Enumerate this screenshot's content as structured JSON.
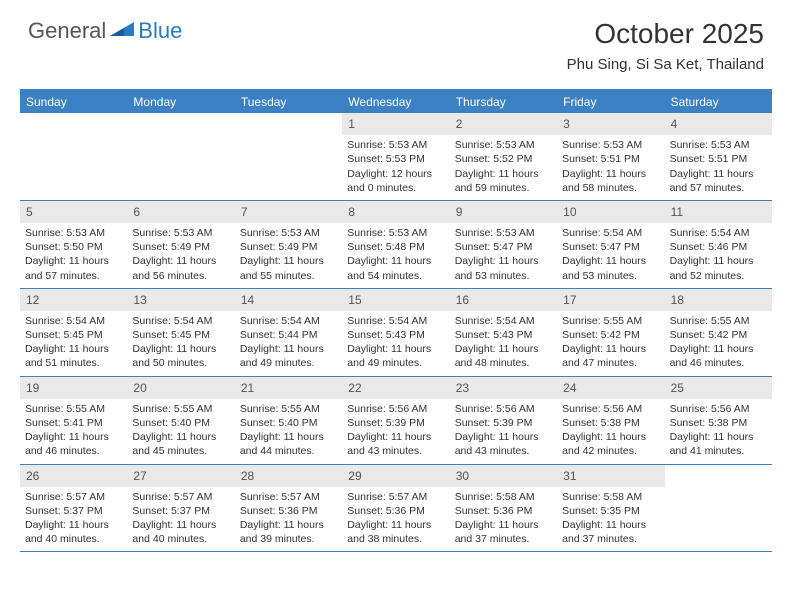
{
  "logo": {
    "text1": "General",
    "text2": "Blue"
  },
  "title": "October 2025",
  "location": "Phu Sing, Si Sa Ket, Thailand",
  "colors": {
    "header_blue": "#3b81c3",
    "daynum_bg": "#e9e9e9",
    "text": "#333333",
    "logo_blue": "#2b7bbf"
  },
  "daysOfWeek": [
    "Sunday",
    "Monday",
    "Tuesday",
    "Wednesday",
    "Thursday",
    "Friday",
    "Saturday"
  ],
  "weeks": [
    [
      {
        "n": "",
        "sr": "",
        "ss": "",
        "dl": ""
      },
      {
        "n": "",
        "sr": "",
        "ss": "",
        "dl": ""
      },
      {
        "n": "",
        "sr": "",
        "ss": "",
        "dl": ""
      },
      {
        "n": "1",
        "sr": "5:53 AM",
        "ss": "5:53 PM",
        "dl": "12 hours and 0 minutes."
      },
      {
        "n": "2",
        "sr": "5:53 AM",
        "ss": "5:52 PM",
        "dl": "11 hours and 59 minutes."
      },
      {
        "n": "3",
        "sr": "5:53 AM",
        "ss": "5:51 PM",
        "dl": "11 hours and 58 minutes."
      },
      {
        "n": "4",
        "sr": "5:53 AM",
        "ss": "5:51 PM",
        "dl": "11 hours and 57 minutes."
      }
    ],
    [
      {
        "n": "5",
        "sr": "5:53 AM",
        "ss": "5:50 PM",
        "dl": "11 hours and 57 minutes."
      },
      {
        "n": "6",
        "sr": "5:53 AM",
        "ss": "5:49 PM",
        "dl": "11 hours and 56 minutes."
      },
      {
        "n": "7",
        "sr": "5:53 AM",
        "ss": "5:49 PM",
        "dl": "11 hours and 55 minutes."
      },
      {
        "n": "8",
        "sr": "5:53 AM",
        "ss": "5:48 PM",
        "dl": "11 hours and 54 minutes."
      },
      {
        "n": "9",
        "sr": "5:53 AM",
        "ss": "5:47 PM",
        "dl": "11 hours and 53 minutes."
      },
      {
        "n": "10",
        "sr": "5:54 AM",
        "ss": "5:47 PM",
        "dl": "11 hours and 53 minutes."
      },
      {
        "n": "11",
        "sr": "5:54 AM",
        "ss": "5:46 PM",
        "dl": "11 hours and 52 minutes."
      }
    ],
    [
      {
        "n": "12",
        "sr": "5:54 AM",
        "ss": "5:45 PM",
        "dl": "11 hours and 51 minutes."
      },
      {
        "n": "13",
        "sr": "5:54 AM",
        "ss": "5:45 PM",
        "dl": "11 hours and 50 minutes."
      },
      {
        "n": "14",
        "sr": "5:54 AM",
        "ss": "5:44 PM",
        "dl": "11 hours and 49 minutes."
      },
      {
        "n": "15",
        "sr": "5:54 AM",
        "ss": "5:43 PM",
        "dl": "11 hours and 49 minutes."
      },
      {
        "n": "16",
        "sr": "5:54 AM",
        "ss": "5:43 PM",
        "dl": "11 hours and 48 minutes."
      },
      {
        "n": "17",
        "sr": "5:55 AM",
        "ss": "5:42 PM",
        "dl": "11 hours and 47 minutes."
      },
      {
        "n": "18",
        "sr": "5:55 AM",
        "ss": "5:42 PM",
        "dl": "11 hours and 46 minutes."
      }
    ],
    [
      {
        "n": "19",
        "sr": "5:55 AM",
        "ss": "5:41 PM",
        "dl": "11 hours and 46 minutes."
      },
      {
        "n": "20",
        "sr": "5:55 AM",
        "ss": "5:40 PM",
        "dl": "11 hours and 45 minutes."
      },
      {
        "n": "21",
        "sr": "5:55 AM",
        "ss": "5:40 PM",
        "dl": "11 hours and 44 minutes."
      },
      {
        "n": "22",
        "sr": "5:56 AM",
        "ss": "5:39 PM",
        "dl": "11 hours and 43 minutes."
      },
      {
        "n": "23",
        "sr": "5:56 AM",
        "ss": "5:39 PM",
        "dl": "11 hours and 43 minutes."
      },
      {
        "n": "24",
        "sr": "5:56 AM",
        "ss": "5:38 PM",
        "dl": "11 hours and 42 minutes."
      },
      {
        "n": "25",
        "sr": "5:56 AM",
        "ss": "5:38 PM",
        "dl": "11 hours and 41 minutes."
      }
    ],
    [
      {
        "n": "26",
        "sr": "5:57 AM",
        "ss": "5:37 PM",
        "dl": "11 hours and 40 minutes."
      },
      {
        "n": "27",
        "sr": "5:57 AM",
        "ss": "5:37 PM",
        "dl": "11 hours and 40 minutes."
      },
      {
        "n": "28",
        "sr": "5:57 AM",
        "ss": "5:36 PM",
        "dl": "11 hours and 39 minutes."
      },
      {
        "n": "29",
        "sr": "5:57 AM",
        "ss": "5:36 PM",
        "dl": "11 hours and 38 minutes."
      },
      {
        "n": "30",
        "sr": "5:58 AM",
        "ss": "5:36 PM",
        "dl": "11 hours and 37 minutes."
      },
      {
        "n": "31",
        "sr": "5:58 AM",
        "ss": "5:35 PM",
        "dl": "11 hours and 37 minutes."
      },
      {
        "n": "",
        "sr": "",
        "ss": "",
        "dl": ""
      }
    ]
  ],
  "labels": {
    "sunrise": "Sunrise: ",
    "sunset": "Sunset: ",
    "daylight": "Daylight: "
  }
}
